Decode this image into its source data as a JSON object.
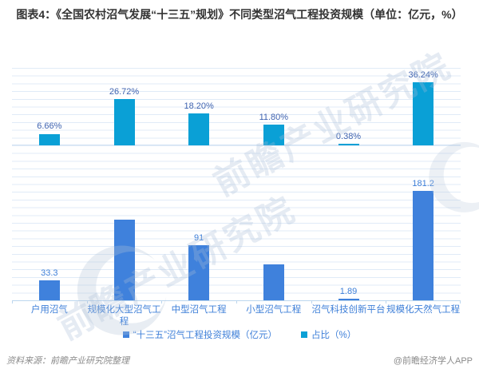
{
  "title": "图表4：《全国农村沼气发展“十三五”规划》不同类型沼气工程投资规模（单位：亿元，%）",
  "watermark": {
    "text": "前瞻产业研究院"
  },
  "legend": [
    {
      "label": "“十三五”沼气工程投资规模（亿元）",
      "color": "#3F81DC"
    },
    {
      "label": "占比（%）",
      "color": "#0AA0D6"
    }
  ],
  "footer": {
    "source": "资料来源：前瞻产业研究院整理",
    "brand": "@前瞻经济学人APP"
  },
  "chart_data": {
    "type": "bar",
    "title": "图表4：《全国农村沼气发展“十三五”规划》不同类型沼气工程投资规模（单位：亿元，%）",
    "categories": [
      "户用沼气",
      "规模化大型沼气工程",
      "中型沼气工程",
      "小型沼气工程",
      "沼气科技创新平台",
      "规模化天然气工程"
    ],
    "series": [
      {
        "name": "“十三五”沼气工程投资规模（亿元）",
        "unit": "亿元",
        "color": "#3F81DC",
        "label_color": "#3E7FD8",
        "values": [
          33.3,
          133.6,
          91,
          59,
          1.89,
          181.2
        ],
        "labels": [
          "33.3",
          "",
          "91",
          "",
          "1.89",
          "181.2"
        ],
        "estimated_indices": [
          1,
          3
        ]
      },
      {
        "name": "占比（%）",
        "unit": "%",
        "color": "#0AA0D6",
        "label_color": "#3F63B0",
        "values": [
          6.66,
          26.72,
          18.2,
          11.8,
          0.38,
          36.24
        ],
        "labels": [
          "6.66%",
          "26.72%",
          "18.20%",
          "11.80%",
          "0.38%",
          "36.24%"
        ],
        "estimated_indices": []
      }
    ],
    "layout": "two stacked horizontal bands sharing one x-axis: percent series on top band, investment series on bottom band",
    "grid": true,
    "legend_position": "bottom",
    "x_label_color": "#3E7FD8"
  }
}
